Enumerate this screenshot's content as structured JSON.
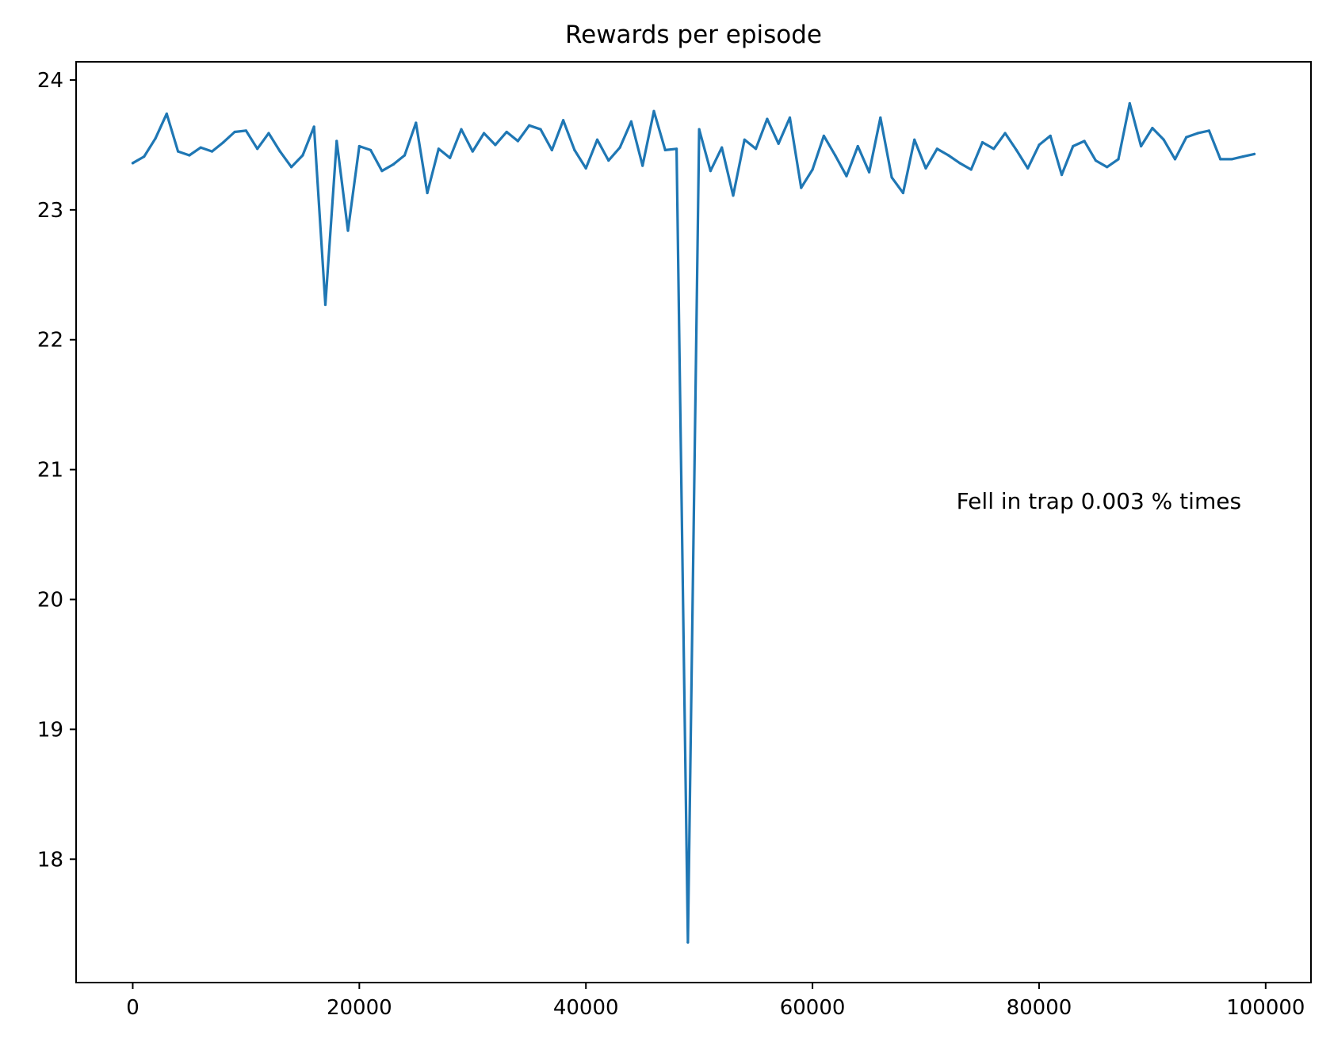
{
  "chart_data": {
    "type": "line",
    "title": "Rewards per episode",
    "xlabel": "",
    "ylabel": "",
    "xlim": [
      -5000,
      104000
    ],
    "ylim": [
      17.05,
      24.14
    ],
    "x_ticks": [
      0,
      20000,
      40000,
      60000,
      80000,
      100000
    ],
    "y_ticks": [
      18,
      19,
      20,
      21,
      22,
      23,
      24
    ],
    "grid": false,
    "legend": "none",
    "color": "#1f77b4",
    "annotation": {
      "text": "Fell in trap 0.003 % times",
      "x": 72700,
      "y": 20.7
    },
    "series": [
      {
        "x": [
          0,
          1000,
          2000,
          3000,
          4000,
          5000,
          6000,
          7000,
          8000,
          9000,
          10000,
          11000,
          12000,
          13000,
          14000,
          15000,
          16000,
          17000,
          18000,
          19000,
          20000,
          21000,
          22000,
          23000,
          24000,
          25000,
          26000,
          27000,
          28000,
          29000,
          30000,
          31000,
          32000,
          33000,
          34000,
          35000,
          36000,
          37000,
          38000,
          39000,
          40000,
          41000,
          42000,
          43000,
          44000,
          45000,
          46000,
          47000,
          48000,
          49000,
          50000,
          51000,
          52000,
          53000,
          54000,
          55000,
          56000,
          57000,
          58000,
          59000,
          60000,
          61000,
          62000,
          63000,
          64000,
          65000,
          66000,
          67000,
          68000,
          69000,
          70000,
          71000,
          72000,
          73000,
          74000,
          75000,
          76000,
          77000,
          78000,
          79000,
          80000,
          81000,
          82000,
          83000,
          84000,
          85000,
          86000,
          87000,
          88000,
          89000,
          90000,
          91000,
          92000,
          93000,
          94000,
          95000,
          96000,
          97000,
          98000,
          99000
        ],
        "values": [
          23.36,
          23.41,
          23.55,
          23.74,
          23.45,
          23.42,
          23.48,
          23.45,
          23.52,
          23.6,
          23.61,
          23.47,
          23.59,
          23.45,
          23.33,
          23.42,
          23.64,
          22.27,
          23.53,
          22.84,
          23.49,
          23.46,
          23.3,
          23.35,
          23.42,
          23.67,
          23.13,
          23.47,
          23.4,
          23.62,
          23.45,
          23.59,
          23.5,
          23.6,
          23.53,
          23.65,
          23.62,
          23.46,
          23.69,
          23.46,
          23.32,
          23.54,
          23.38,
          23.48,
          23.68,
          23.34,
          23.76,
          23.46,
          23.47,
          17.36,
          23.62,
          23.3,
          23.48,
          23.11,
          23.54,
          23.47,
          23.7,
          23.51,
          23.71,
          23.17,
          23.31,
          23.57,
          23.42,
          23.26,
          23.49,
          23.29,
          23.71,
          23.25,
          23.13,
          23.54,
          23.32,
          23.47,
          23.42,
          23.36,
          23.31,
          23.52,
          23.47,
          23.59,
          23.46,
          23.32,
          23.5,
          23.57,
          23.27,
          23.49,
          23.53,
          23.38,
          23.33,
          23.39,
          23.82,
          23.49,
          23.63,
          23.54,
          23.39,
          23.56,
          23.59,
          23.61,
          23.39,
          23.39,
          23.41,
          23.43
        ]
      }
    ]
  }
}
